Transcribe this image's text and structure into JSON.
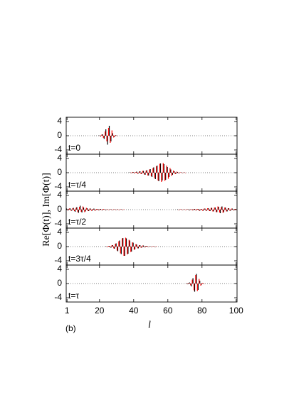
{
  "figure": {
    "ylabel": "Re[Φ(t)], Im[Φ(t)]",
    "xlabel": "l",
    "panel_label": "(b)"
  },
  "chart_data": [
    {
      "type": "bar",
      "annotation": "t=0",
      "xlim": [
        0.5,
        100.5
      ],
      "xticks": [
        1,
        20,
        40,
        60,
        80,
        100
      ],
      "ylim": [
        -5.2,
        5.2
      ],
      "yticks": [
        -4,
        0,
        4
      ],
      "series": [
        {
          "color": "#000000",
          "x": [
            20,
            21,
            22,
            23,
            24,
            25,
            26,
            27,
            28,
            29,
            30
          ],
          "values": [
            0.1,
            -0.2,
            0.4,
            -0.9,
            1.8,
            -2.5,
            2.8,
            -1.6,
            0.7,
            -0.3,
            0.1
          ]
        },
        {
          "color": "#ff0000",
          "x": [
            20,
            21,
            22,
            23,
            24,
            25,
            26,
            27,
            28,
            29,
            30
          ],
          "values": [
            -0.1,
            0.3,
            -0.6,
            1.2,
            -1.6,
            2.2,
            -2.0,
            1.5,
            -0.5,
            0.2,
            -0.1
          ]
        }
      ]
    },
    {
      "type": "bar",
      "annotation": "t=τ/4",
      "xlim": [
        0.5,
        100.5
      ],
      "xticks": [
        1,
        20,
        40,
        60,
        80,
        100
      ],
      "ylim": [
        -5.2,
        5.2
      ],
      "yticks": [
        -4,
        0,
        4
      ],
      "series": [
        {
          "color": "#000000",
          "x": [
            38,
            39,
            40,
            41,
            42,
            43,
            44,
            45,
            46,
            47,
            48,
            49,
            50,
            51,
            52,
            53,
            54,
            55,
            56,
            57,
            58,
            59,
            60,
            61,
            62,
            63,
            64,
            65,
            66,
            67,
            68,
            69,
            70
          ],
          "values": [
            0.1,
            -0.1,
            0.2,
            -0.1,
            0.3,
            -0.2,
            0.4,
            -0.3,
            0.5,
            -0.6,
            0.7,
            -0.8,
            1.0,
            -1.2,
            1.5,
            -1.8,
            2.0,
            -2.4,
            2.6,
            -2.2,
            2.4,
            -2.0,
            1.6,
            -1.2,
            0.9,
            -0.6,
            0.4,
            -0.3,
            0.2,
            -0.1,
            0.1,
            -0.1,
            0.1
          ]
        },
        {
          "color": "#ff0000",
          "x": [
            38,
            39,
            40,
            41,
            42,
            43,
            44,
            45,
            46,
            47,
            48,
            49,
            50,
            51,
            52,
            53,
            54,
            55,
            56,
            57,
            58,
            59,
            60,
            61,
            62,
            63,
            64,
            65,
            66,
            67,
            68,
            69,
            70
          ],
          "values": [
            -0.1,
            0.2,
            -0.2,
            0.2,
            -0.3,
            0.3,
            -0.4,
            0.5,
            -0.5,
            0.6,
            -0.8,
            0.9,
            -1.0,
            1.3,
            -1.5,
            1.8,
            -2.2,
            2.5,
            -2.6,
            2.7,
            -2.3,
            2.0,
            -1.7,
            1.3,
            -0.9,
            0.6,
            -0.4,
            0.3,
            -0.2,
            0.1,
            -0.1,
            0.1,
            -0.1
          ]
        }
      ]
    },
    {
      "type": "bar",
      "annotation": "t=τ/2",
      "xlim": [
        0.5,
        100.5
      ],
      "xticks": [
        1,
        20,
        40,
        60,
        80,
        100
      ],
      "ylim": [
        -5.2,
        5.2
      ],
      "yticks": [
        -4,
        0,
        4
      ],
      "series": [
        {
          "color": "#000000",
          "x": [
            1,
            2,
            3,
            4,
            5,
            6,
            7,
            8,
            9,
            10,
            11,
            12,
            13,
            14,
            15,
            16,
            17,
            18,
            19,
            20,
            21,
            22,
            23,
            24,
            25,
            26,
            27,
            28,
            29,
            30,
            31,
            32,
            33,
            34,
            66,
            67,
            68,
            69,
            70,
            71,
            72,
            73,
            74,
            75,
            76,
            77,
            78,
            79,
            80,
            81,
            82,
            83,
            84,
            85,
            86,
            87,
            88,
            89,
            90,
            91,
            92,
            93,
            94,
            95,
            96,
            97,
            98,
            99,
            100
          ],
          "values": [
            0.3,
            -0.2,
            0.4,
            -0.3,
            0.5,
            -0.6,
            0.7,
            -0.9,
            1.1,
            -0.8,
            0.6,
            -0.5,
            0.4,
            -0.4,
            0.3,
            -0.3,
            0.3,
            -0.2,
            0.2,
            -0.2,
            0.2,
            -0.2,
            0.1,
            -0.2,
            0.1,
            -0.1,
            0.1,
            -0.1,
            0.1,
            -0.1,
            0.1,
            -0.1,
            0.1,
            -0.1,
            0.1,
            -0.1,
            0.1,
            -0.1,
            0.1,
            -0.1,
            0.1,
            -0.2,
            0.1,
            -0.2,
            0.2,
            -0.2,
            0.2,
            -0.3,
            0.2,
            -0.3,
            0.3,
            -0.3,
            0.4,
            -0.4,
            0.5,
            -0.5,
            0.6,
            -0.7,
            0.8,
            -1.0,
            0.9,
            -0.7,
            0.6,
            -0.5,
            0.4,
            -0.3,
            0.3,
            -0.2,
            0.2
          ]
        },
        {
          "color": "#ff0000",
          "x": [
            1,
            2,
            3,
            4,
            5,
            6,
            7,
            8,
            9,
            10,
            11,
            12,
            13,
            14,
            15,
            16,
            17,
            18,
            19,
            20,
            21,
            22,
            23,
            24,
            25,
            26,
            27,
            28,
            29,
            30,
            31,
            32,
            33,
            34,
            66,
            67,
            68,
            69,
            70,
            71,
            72,
            73,
            74,
            75,
            76,
            77,
            78,
            79,
            80,
            81,
            82,
            83,
            84,
            85,
            86,
            87,
            88,
            89,
            90,
            91,
            92,
            93,
            94,
            95,
            96,
            97,
            98,
            99,
            100
          ],
          "values": [
            -0.2,
            0.3,
            -0.3,
            0.4,
            -0.4,
            0.5,
            -0.7,
            0.8,
            -0.6,
            0.9,
            -0.7,
            0.5,
            -0.4,
            0.3,
            -0.3,
            0.2,
            -0.3,
            0.2,
            -0.2,
            0.2,
            -0.1,
            0.2,
            -0.1,
            0.1,
            -0.1,
            0.1,
            -0.1,
            0.1,
            -0.1,
            0.1,
            -0.1,
            0.1,
            -0.1,
            0.1,
            -0.1,
            0.1,
            -0.1,
            0.1,
            -0.1,
            0.1,
            -0.1,
            0.1,
            -0.2,
            0.2,
            -0.2,
            0.2,
            -0.3,
            0.2,
            -0.3,
            0.3,
            -0.3,
            0.4,
            -0.4,
            0.5,
            -0.5,
            0.6,
            -0.7,
            0.9,
            -0.8,
            0.7,
            -0.9,
            0.6,
            -0.5,
            0.4,
            -0.3,
            0.3,
            -0.2,
            0.2,
            -0.1
          ]
        }
      ]
    },
    {
      "type": "bar",
      "annotation": "t=3τ/4",
      "xlim": [
        0.5,
        100.5
      ],
      "xticks": [
        1,
        20,
        40,
        60,
        80,
        100
      ],
      "ylim": [
        -5.2,
        5.2
      ],
      "yticks": [
        -4,
        0,
        4
      ],
      "series": [
        {
          "color": "#000000",
          "x": [
            24,
            25,
            26,
            27,
            28,
            29,
            30,
            31,
            32,
            33,
            34,
            35,
            36,
            37,
            38,
            39,
            40,
            41,
            42,
            43,
            44,
            45,
            46,
            47,
            48,
            49,
            50,
            51,
            52,
            53
          ],
          "values": [
            0.1,
            -0.1,
            0.2,
            -0.3,
            0.4,
            -0.6,
            0.9,
            -1.3,
            1.7,
            -2.1,
            2.4,
            -2.6,
            2.3,
            -2.0,
            1.7,
            -1.4,
            1.1,
            -0.8,
            0.6,
            -0.5,
            0.4,
            -0.3,
            0.3,
            -0.2,
            0.2,
            -0.1,
            0.1,
            -0.1,
            0.1,
            -0.1
          ]
        },
        {
          "color": "#ff0000",
          "x": [
            24,
            25,
            26,
            27,
            28,
            29,
            30,
            31,
            32,
            33,
            34,
            35,
            36,
            37,
            38,
            39,
            40,
            41,
            42,
            43,
            44,
            45,
            46,
            47,
            48,
            49,
            50,
            51,
            52,
            53
          ],
          "values": [
            -0.1,
            0.2,
            -0.2,
            0.4,
            -0.5,
            0.8,
            -1.1,
            1.5,
            -1.9,
            2.3,
            -2.6,
            2.5,
            -2.2,
            1.9,
            -1.5,
            1.2,
            -0.9,
            0.7,
            -0.5,
            0.4,
            -0.3,
            0.3,
            -0.2,
            0.2,
            -0.1,
            0.1,
            -0.1,
            0.1,
            -0.1,
            0.1
          ]
        }
      ]
    },
    {
      "type": "bar",
      "annotation": "t=τ",
      "xlim": [
        0.5,
        100.5
      ],
      "xticks": [
        1,
        20,
        40,
        60,
        80,
        100
      ],
      "ylim": [
        -5.2,
        5.2
      ],
      "yticks": [
        -4,
        0,
        4
      ],
      "series": [
        {
          "color": "#000000",
          "x": [
            71,
            72,
            73,
            74,
            75,
            76,
            77,
            78,
            79,
            80,
            81
          ],
          "values": [
            0.1,
            -0.2,
            0.3,
            -0.8,
            1.5,
            -2.3,
            2.7,
            -1.8,
            0.8,
            -0.3,
            0.1
          ]
        },
        {
          "color": "#ff0000",
          "x": [
            71,
            72,
            73,
            74,
            75,
            76,
            77,
            78,
            79,
            80,
            81
          ],
          "values": [
            -0.1,
            0.2,
            -0.5,
            1.1,
            -1.9,
            2.4,
            -2.1,
            1.3,
            -0.6,
            0.2,
            -0.1
          ]
        }
      ]
    }
  ]
}
